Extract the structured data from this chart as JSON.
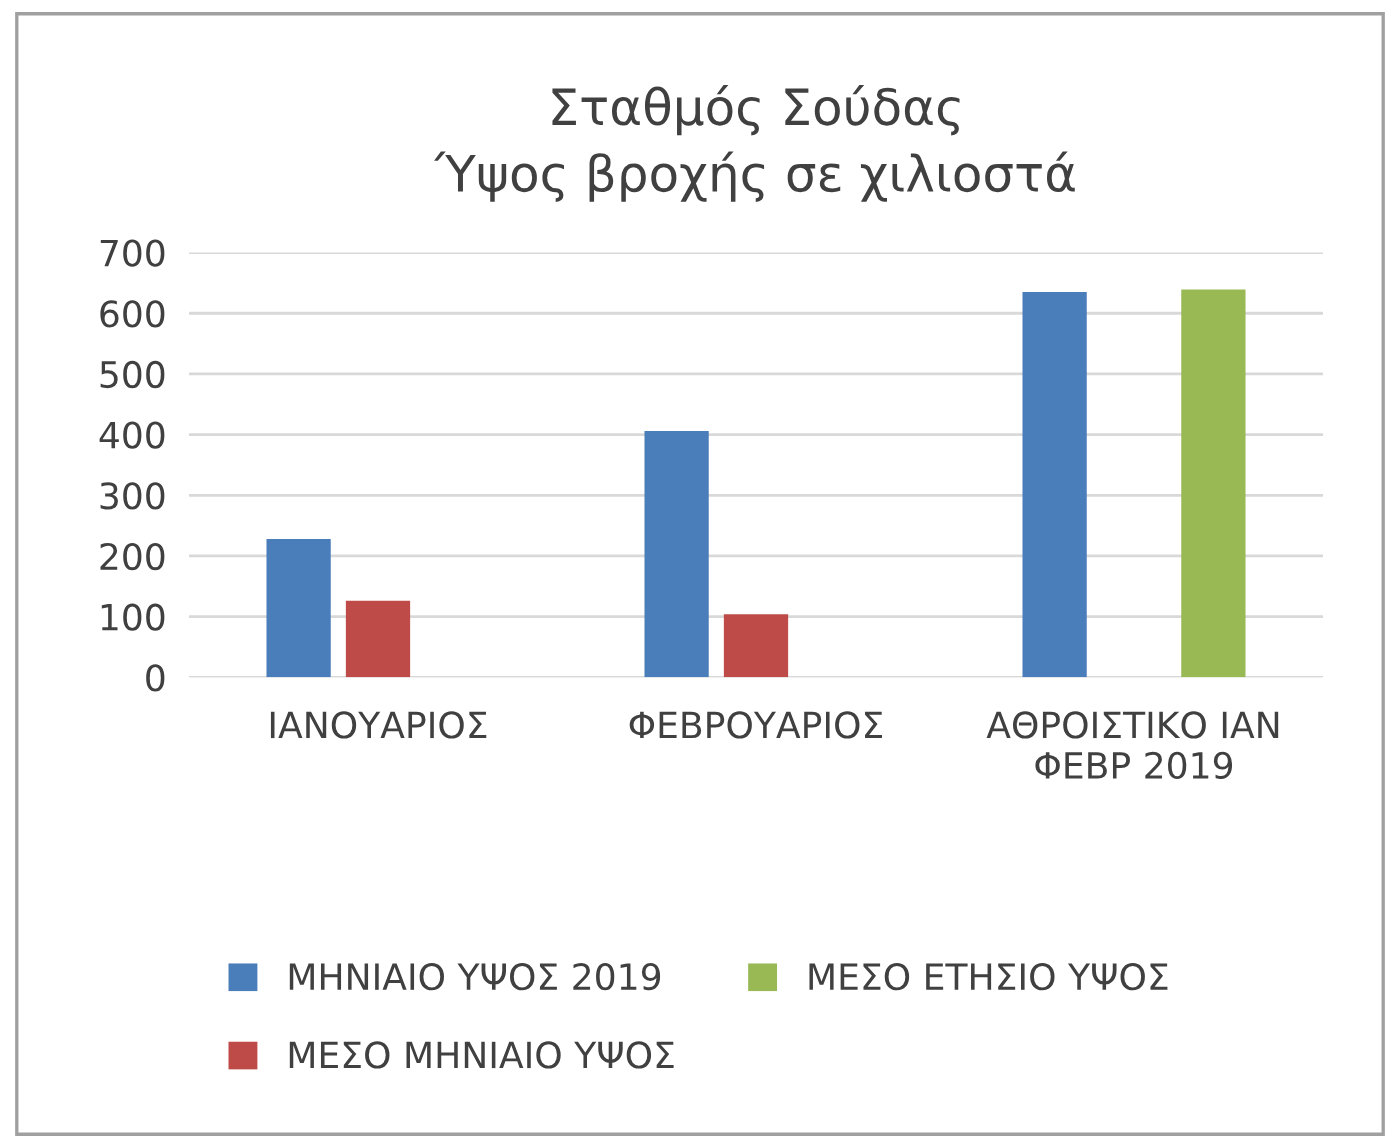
{
  "chart_data": {
    "type": "bar",
    "title": "Σταθμός Σούδας\nΎψος βροχής σε χιλιοστά",
    "categories": [
      "ΙΑΝΟΥΑΡΙΟΣ",
      "ΦΕΒΡΟΥΑΡΙΟΣ",
      "ΑΘΡΟΙΣΤΙΚΟ ΙΑΝ\nΦΕΒΡ 2019"
    ],
    "series": [
      {
        "name": "ΜΗΝΙΑΙΟ ΥΨΟΣ 2019",
        "color": "#4a7ebb",
        "values": [
          228,
          406,
          635
        ]
      },
      {
        "name": "ΜΕΣΟ ΜΗΝΙΑΙΟ ΥΨΟΣ",
        "color": "#be4b48",
        "values": [
          126,
          104,
          null
        ]
      },
      {
        "name": "ΜΕΣΟ ΕΤΗΣΙΟ ΥΨΟΣ",
        "color": "#98b954",
        "values": [
          null,
          null,
          639
        ]
      }
    ],
    "ylim": [
      0,
      700
    ],
    "yticks": [
      0,
      100,
      200,
      300,
      400,
      500,
      600,
      700
    ],
    "grid": "y",
    "legend": "bottom"
  }
}
